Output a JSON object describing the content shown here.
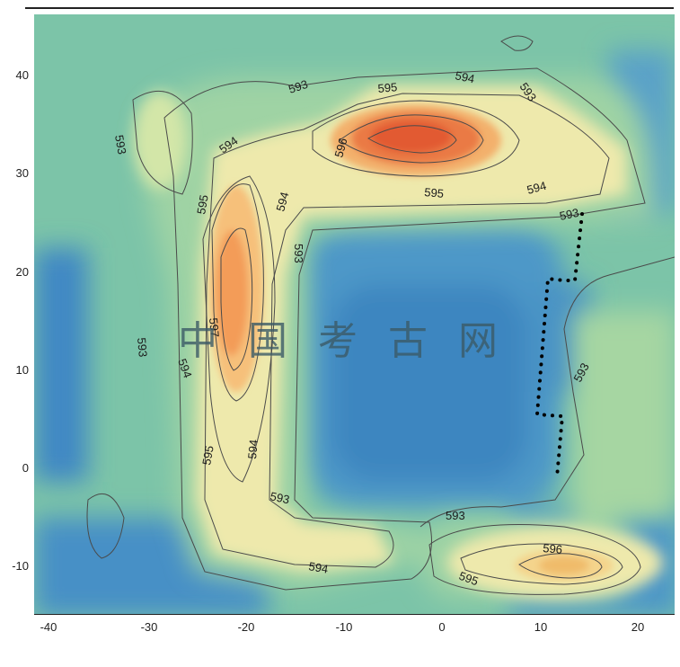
{
  "map": {
    "x_ticks": [
      "-40",
      "-30",
      "-20",
      "-10",
      "0",
      "10",
      "20"
    ],
    "y_ticks": [
      "40",
      "30",
      "20",
      "10",
      "0",
      "-10"
    ],
    "contour_labels": [
      "593",
      "593",
      "593",
      "593",
      "593",
      "593",
      "593",
      "593",
      "593",
      "594",
      "594",
      "594",
      "594",
      "594",
      "594",
      "594",
      "595",
      "595",
      "595",
      "595",
      "595",
      "596",
      "596",
      "597"
    ],
    "watermark": "中国考古网",
    "colors": {
      "background": "#7cc4a8",
      "low": "#3f8fc8",
      "mid": "#a9d6a8",
      "ridge": "#f6efb0",
      "high": "#f6a95e",
      "peak": "#e45f35",
      "contour_line": "#4a4a4a",
      "dotted_wall": "#000000"
    }
  }
}
